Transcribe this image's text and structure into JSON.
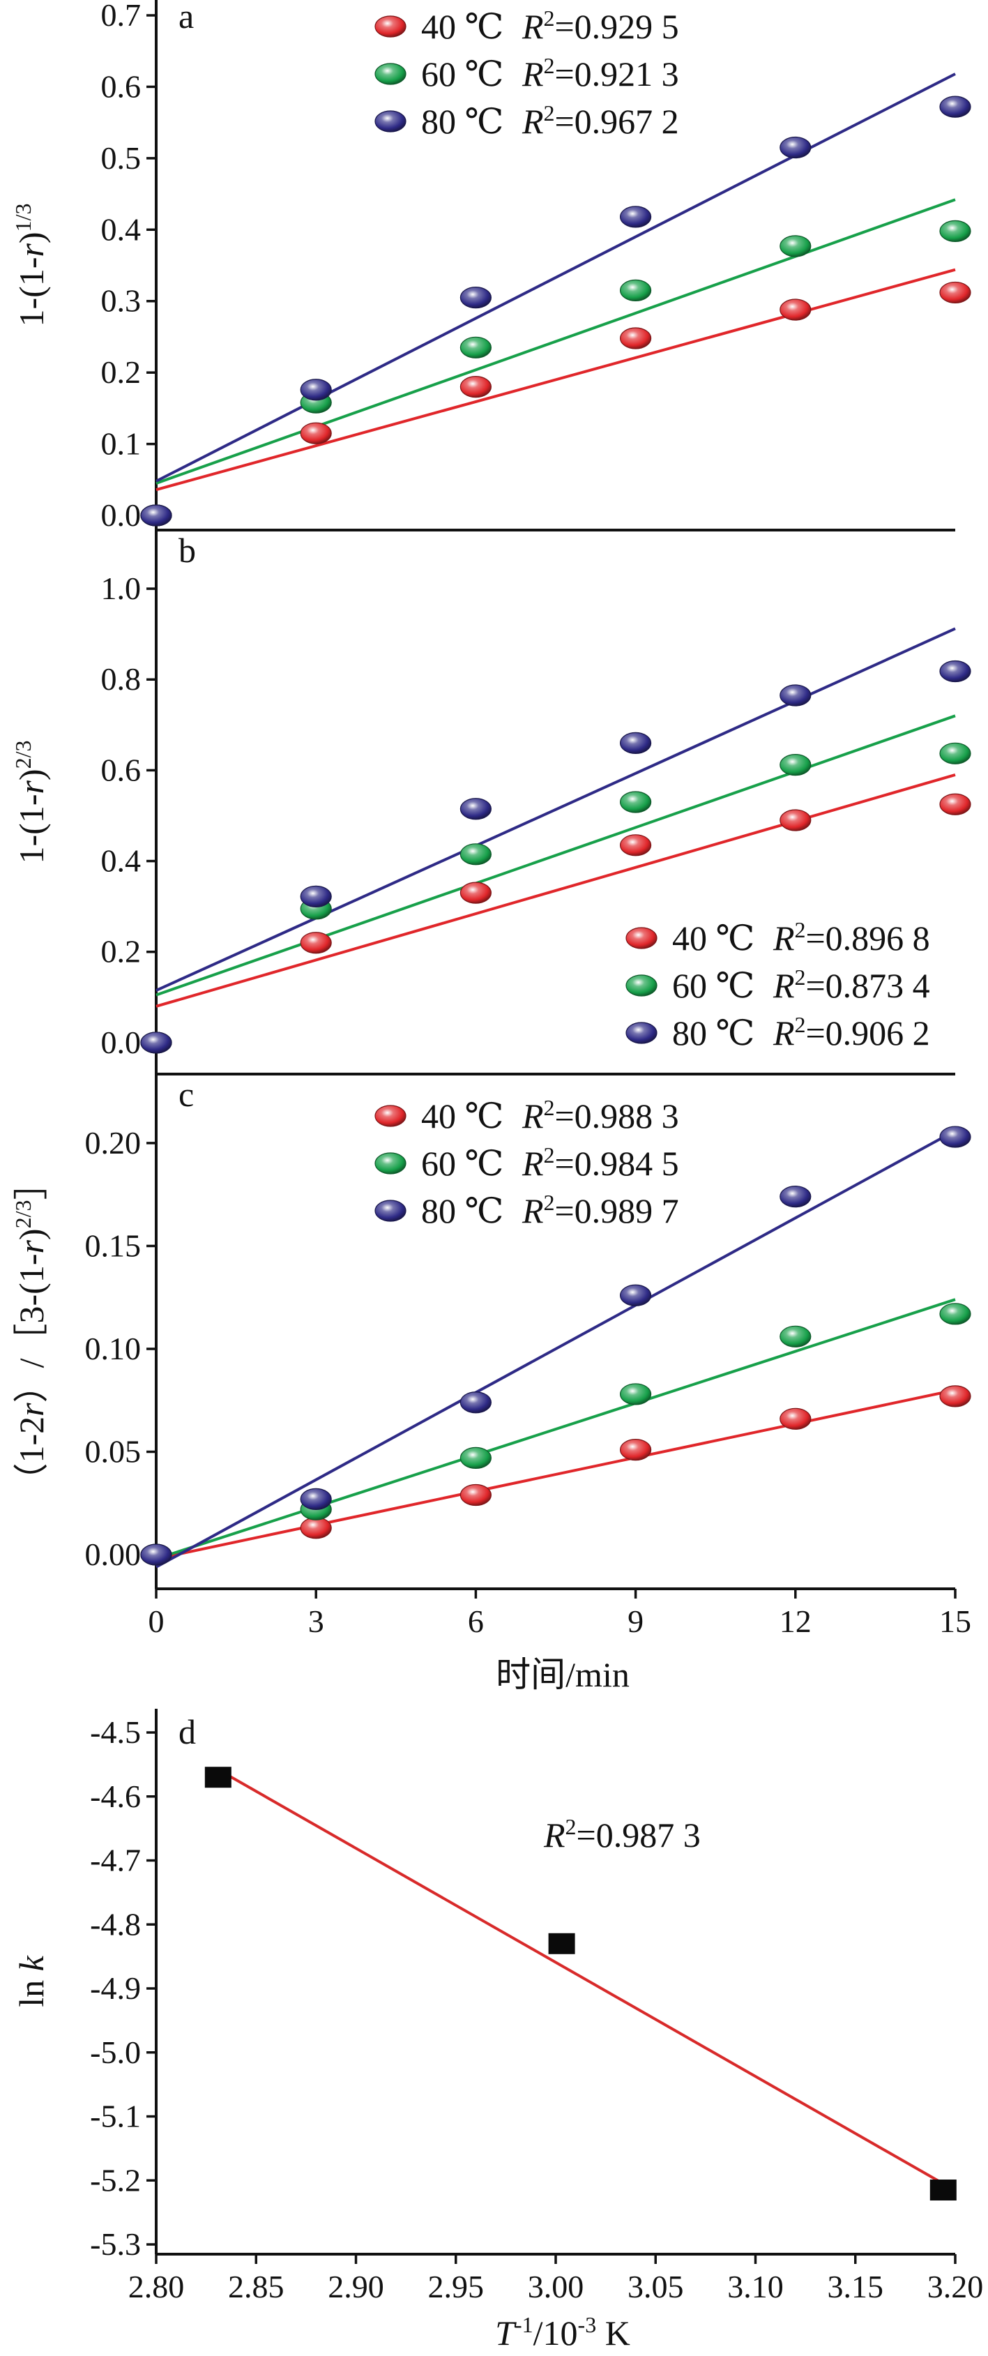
{
  "colors": {
    "c40": "#e0262a",
    "c60": "#17a04a",
    "c80": "#2e2a86",
    "fit_d": "#d82a2a",
    "square": "#0a0a0a",
    "axis": "#111111"
  },
  "chart_data": [
    {
      "id": "a",
      "type": "scatter",
      "panel_label": "a",
      "ylabel": "1-(1-r)^1/3",
      "ylabel_parts": [
        "1-(1-",
        "r",
        ")",
        "1/3"
      ],
      "xlim": [
        0,
        15
      ],
      "ylim": [
        -0.04,
        0.7
      ],
      "yticks": [
        0.0,
        0.1,
        0.2,
        0.3,
        0.4,
        0.5,
        0.6,
        0.7
      ],
      "ytick_labels": [
        "0.0",
        "0.1",
        "0.2",
        "0.3",
        "0.4",
        "0.5",
        "0.6",
        "0.7"
      ],
      "x": [
        0,
        3,
        6,
        9,
        12,
        15
      ],
      "legend_position": "top-center",
      "series": [
        {
          "name": "40 ℃",
          "color_key": "c40",
          "r2_value": "=0.929 5",
          "y": [
            0.0,
            0.115,
            0.18,
            0.248,
            0.288,
            0.312
          ],
          "fit": [
            [
              0,
              0.036
            ],
            [
              15,
              0.344
            ]
          ]
        },
        {
          "name": "60 ℃",
          "color_key": "c60",
          "r2_value": "=0.921 3",
          "y": [
            0.0,
            0.158,
            0.235,
            0.315,
            0.377,
            0.398
          ],
          "fit": [
            [
              0,
              0.045
            ],
            [
              15,
              0.442
            ]
          ]
        },
        {
          "name": "80 ℃",
          "color_key": "c80",
          "r2_value": "=0.967 2",
          "y": [
            0.0,
            0.176,
            0.305,
            0.418,
            0.515,
            0.572
          ],
          "fit": [
            [
              0,
              0.048
            ],
            [
              15,
              0.618
            ]
          ]
        }
      ]
    },
    {
      "id": "b",
      "type": "scatter",
      "panel_label": "b",
      "ylabel": "1-(1-r)^2/3",
      "ylabel_parts": [
        "1-(1-",
        "r",
        ")",
        "2/3"
      ],
      "xlim": [
        0,
        15
      ],
      "ylim": [
        -0.1,
        1.08
      ],
      "yticks": [
        0.0,
        0.2,
        0.4,
        0.6,
        0.8,
        1.0
      ],
      "ytick_labels": [
        "0.0",
        "0.2",
        "0.4",
        "0.6",
        "0.8",
        "1.0"
      ],
      "x": [
        0,
        3,
        6,
        9,
        12,
        15
      ],
      "legend_position": "bottom-right",
      "series": [
        {
          "name": "40 ℃",
          "color_key": "c40",
          "r2_value": "=0.896 8",
          "y": [
            0.0,
            0.22,
            0.33,
            0.435,
            0.49,
            0.525
          ],
          "fit": [
            [
              0,
              0.08
            ],
            [
              15,
              0.59
            ]
          ]
        },
        {
          "name": "60 ℃",
          "color_key": "c60",
          "r2_value": "=0.873 4",
          "y": [
            0.0,
            0.295,
            0.415,
            0.53,
            0.612,
            0.637
          ],
          "fit": [
            [
              0,
              0.105
            ],
            [
              15,
              0.72
            ]
          ]
        },
        {
          "name": "80 ℃",
          "color_key": "c80",
          "r2_value": "=0.906 2",
          "y": [
            0.0,
            0.322,
            0.515,
            0.66,
            0.765,
            0.818
          ],
          "fit": [
            [
              0,
              0.115
            ],
            [
              15,
              0.912
            ]
          ]
        }
      ]
    },
    {
      "id": "c",
      "type": "scatter",
      "panel_label": "c",
      "ylabel": "(1-2r)/[3-(1-r)^2/3]",
      "ylabel_parts": [
        "（1-2",
        "r",
        "）/［3-(1-",
        "r",
        ")",
        "2/3",
        "］"
      ],
      "xlabel": "时间/min",
      "xlim": [
        0,
        15
      ],
      "ylim": [
        -0.022,
        0.222
      ],
      "yticks": [
        0.0,
        0.05,
        0.1,
        0.15,
        0.2
      ],
      "ytick_labels": [
        "0.00",
        "0.05",
        "0.10",
        "0.15",
        "0.20"
      ],
      "xticks": [
        0,
        3,
        6,
        9,
        12,
        15
      ],
      "xtick_labels": [
        "0",
        "3",
        "6",
        "9",
        "12",
        "15"
      ],
      "x": [
        0,
        3,
        6,
        9,
        12,
        15
      ],
      "legend_position": "top-center",
      "series": [
        {
          "name": "40 ℃",
          "color_key": "c40",
          "r2_value": "=0.988 3",
          "y": [
            0.0,
            0.013,
            0.029,
            0.051,
            0.066,
            0.077
          ],
          "fit": [
            [
              0,
              -0.002
            ],
            [
              15,
              0.08
            ]
          ]
        },
        {
          "name": "60 ℃",
          "color_key": "c60",
          "r2_value": "=0.984 5",
          "y": [
            0.0,
            0.022,
            0.047,
            0.078,
            0.106,
            0.117
          ],
          "fit": [
            [
              0,
              -0.002
            ],
            [
              15,
              0.124
            ]
          ]
        },
        {
          "name": "80 ℃",
          "color_key": "c80",
          "r2_value": "=0.989 7",
          "y": [
            0.0,
            0.027,
            0.074,
            0.126,
            0.174,
            0.203
          ],
          "fit": [
            [
              0,
              -0.006
            ],
            [
              15,
              0.206
            ]
          ]
        }
      ]
    },
    {
      "id": "d",
      "type": "scatter",
      "panel_label": "d",
      "ylabel": "ln k",
      "xlabel": "T-1/10-3 K",
      "xlim": [
        2.8,
        3.2
      ],
      "ylim": [
        -5.3,
        -4.5
      ],
      "xticks": [
        2.8,
        2.85,
        2.9,
        2.95,
        3.0,
        3.05,
        3.1,
        3.15,
        3.2
      ],
      "xtick_labels": [
        "2.80",
        "2.85",
        "2.90",
        "2.95",
        "3.00",
        "3.05",
        "3.10",
        "3.15",
        "3.20"
      ],
      "yticks": [
        -4.5,
        -4.6,
        -4.7,
        -4.8,
        -4.9,
        -5.0,
        -5.1,
        -5.2,
        -5.3
      ],
      "ytick_labels": [
        "-4.5",
        "-4.6",
        "-4.7",
        "-4.8",
        "-4.9",
        "-5.0",
        "-5.1",
        "-5.2",
        "-5.3"
      ],
      "annotation": "=0.987 3",
      "series": [
        {
          "color_key": "square",
          "x": [
            2.831,
            3.003,
            3.194
          ],
          "y": [
            -4.57,
            -4.83,
            -5.215
          ],
          "fit": [
            [
              2.831,
              -4.558
            ],
            [
              3.194,
              -5.205
            ]
          ]
        }
      ]
    }
  ]
}
